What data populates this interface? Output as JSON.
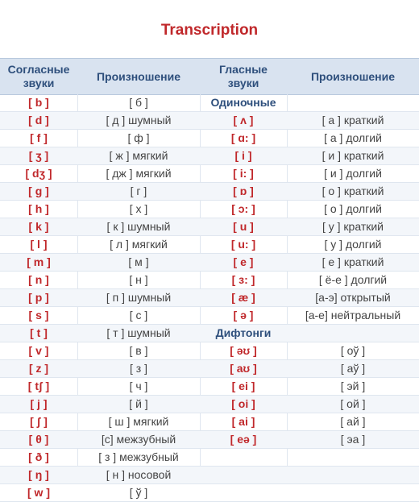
{
  "title": "Transcription",
  "headers": {
    "consonants": [
      "Согласные",
      "звуки"
    ],
    "pron1": "Произношение",
    "vowels": [
      "Гласные",
      "звуки"
    ],
    "pron2": "Произношение"
  },
  "rows": [
    {
      "c": "[ b ]",
      "cp": "[ б ]",
      "v": "Одиночные",
      "vp": ""
    },
    {
      "c": "[ d ]",
      "cp": "[ д ] шумный",
      "v": "[ ʌ ]",
      "vp": "[ а ] краткий"
    },
    {
      "c": "[ f ]",
      "cp": "[ ф ]",
      "v": "[ ɑ: ]",
      "vp": "[ а ] долгий"
    },
    {
      "c": "[ ʒ ]",
      "cp": "[ ж ] мягкий",
      "v": "[ i ]",
      "vp": "[ и ]  краткий"
    },
    {
      "c": "[ dʒ ]",
      "cp": "[ дж ]  мягкий",
      "v": "[ i: ]",
      "vp": "[ и ] долгий"
    },
    {
      "c": "[ g ]",
      "cp": "[ г ]",
      "v": "[ ɒ ]",
      "vp": "[ о ]  краткий"
    },
    {
      "c": "[ h ]",
      "cp": "[ х ]",
      "v": "[ ɔ: ]",
      "vp": "[ о ] долгий"
    },
    {
      "c": "[ k ]",
      "cp": "[ к ] шумный",
      "v": "[ u ]",
      "vp": "[ у ]  краткий"
    },
    {
      "c": "[ l ]",
      "cp": "[ л ] мягкий",
      "v": "[ u: ]",
      "vp": "[ у ] долгий"
    },
    {
      "c": "[ m ]",
      "cp": "[ м ]",
      "v": "[ e ]",
      "vp": "[ е ] краткий"
    },
    {
      "c": "[ n ]",
      "cp": "[ н ]",
      "v": "[ ɜ: ]",
      "vp": "[ ё-е ] долгий"
    },
    {
      "c": "[ p ]",
      "cp": "[ п ] шумный",
      "v": "[ æ ]",
      "vp": "[а-э] открытый"
    },
    {
      "c": "[ s ]",
      "cp": "[ с ]",
      "v": "[ ə ]",
      "vp": "[а-е] нейтральный"
    },
    {
      "c": "[ t ]",
      "cp": "[ т ]  шумный",
      "v": "Дифтонги",
      "vp": ""
    },
    {
      "c": "[ v ]",
      "cp": "[ в ]",
      "v": "[ əʊ ]",
      "vp": "[ оў ]"
    },
    {
      "c": "[ z ]",
      "cp": "[ з ]",
      "v": "[ aʊ ]",
      "vp": "[ аў ]"
    },
    {
      "c": "[ tʃ ]",
      "cp": "[ ч ]",
      "v": "[ ei ]",
      "vp": "[ эй ]"
    },
    {
      "c": "[ j ]",
      "cp": "[ й ]",
      "v": "[ oi ]",
      "vp": "[ ой ]"
    },
    {
      "c": "[ ʃ ]",
      "cp": "[ ш ] мягкий",
      "v": "[ ai ]",
      "vp": "[ ай ]"
    },
    {
      "c": "[ θ ]",
      "cp": "[с] межзубный",
      "v": "[ eə ]",
      "vp": "[ эа ]"
    },
    {
      "c": "[ ð ]",
      "cp": "[ з ] межзубный",
      "v": "",
      "vp": ""
    },
    {
      "c": "[ ŋ ]",
      "cp": "[ н ] носовой",
      "v": "",
      "vp": ""
    },
    {
      "c": "[ w ]",
      "cp": "[ ў ]",
      "v": "",
      "vp": ""
    }
  ],
  "section_labels": [
    "Одиночные",
    "Дифтонги"
  ],
  "colors": {
    "accent": "#c0282b",
    "header_bg": "#d9e3f0",
    "header_text": "#2e4f7c"
  }
}
